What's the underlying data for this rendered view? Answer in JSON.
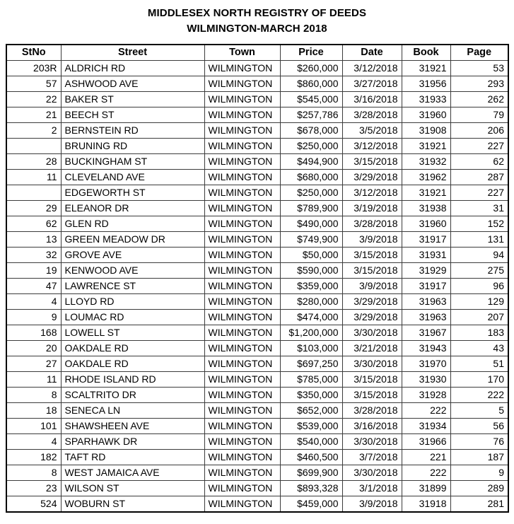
{
  "title": {
    "line1": "MIDDLESEX NORTH REGISTRY OF DEEDS",
    "line2": "WILMINGTON-MARCH 2018"
  },
  "colors": {
    "background": "#ffffff",
    "text": "#000000",
    "outer_border": "#000000",
    "grid_line": "#3c3c3c"
  },
  "table": {
    "columns": [
      {
        "key": "stno",
        "label": "StNo"
      },
      {
        "key": "street",
        "label": "Street"
      },
      {
        "key": "town",
        "label": "Town"
      },
      {
        "key": "price",
        "label": "Price"
      },
      {
        "key": "date",
        "label": "Date"
      },
      {
        "key": "book",
        "label": "Book"
      },
      {
        "key": "page",
        "label": "Page"
      }
    ],
    "rows": [
      {
        "stno": "203R",
        "street": "ALDRICH RD",
        "town": "WILMINGTON",
        "price": "$260,000",
        "date": "3/12/2018",
        "book": "31921",
        "page": "53"
      },
      {
        "stno": "57",
        "street": "ASHWOOD AVE",
        "town": "WILMINGTON",
        "price": "$860,000",
        "date": "3/27/2018",
        "book": "31956",
        "page": "293"
      },
      {
        "stno": "22",
        "street": "BAKER ST",
        "town": "WILMINGTON",
        "price": "$545,000",
        "date": "3/16/2018",
        "book": "31933",
        "page": "262"
      },
      {
        "stno": "21",
        "street": "BEECH ST",
        "town": "WILMINGTON",
        "price": "$257,786",
        "date": "3/28/2018",
        "book": "31960",
        "page": "79"
      },
      {
        "stno": "2",
        "street": "BERNSTEIN RD",
        "town": "WILMINGTON",
        "price": "$678,000",
        "date": "3/5/2018",
        "book": "31908",
        "page": "206"
      },
      {
        "stno": "",
        "street": "BRUNING RD",
        "town": "WILMINGTON",
        "price": "$250,000",
        "date": "3/12/2018",
        "book": "31921",
        "page": "227"
      },
      {
        "stno": "28",
        "street": "BUCKINGHAM ST",
        "town": "WILMINGTON",
        "price": "$494,900",
        "date": "3/15/2018",
        "book": "31932",
        "page": "62"
      },
      {
        "stno": "11",
        "street": "CLEVELAND AVE",
        "town": "WILMINGTON",
        "price": "$680,000",
        "date": "3/29/2018",
        "book": "31962",
        "page": "287"
      },
      {
        "stno": "",
        "street": "EDGEWORTH ST",
        "town": "WILMINGTON",
        "price": "$250,000",
        "date": "3/12/2018",
        "book": "31921",
        "page": "227"
      },
      {
        "stno": "29",
        "street": "ELEANOR DR",
        "town": "WILMINGTON",
        "price": "$789,900",
        "date": "3/19/2018",
        "book": "31938",
        "page": "31"
      },
      {
        "stno": "62",
        "street": "GLEN RD",
        "town": "WILMINGTON",
        "price": "$490,000",
        "date": "3/28/2018",
        "book": "31960",
        "page": "152"
      },
      {
        "stno": "13",
        "street": "GREEN MEADOW DR",
        "town": "WILMINGTON",
        "price": "$749,900",
        "date": "3/9/2018",
        "book": "31917",
        "page": "131"
      },
      {
        "stno": "32",
        "street": "GROVE AVE",
        "town": "WILMINGTON",
        "price": "$50,000",
        "date": "3/15/2018",
        "book": "31931",
        "page": "94"
      },
      {
        "stno": "19",
        "street": "KENWOOD AVE",
        "town": "WILMINGTON",
        "price": "$590,000",
        "date": "3/15/2018",
        "book": "31929",
        "page": "275"
      },
      {
        "stno": "47",
        "street": "LAWRENCE ST",
        "town": "WILMINGTON",
        "price": "$359,000",
        "date": "3/9/2018",
        "book": "31917",
        "page": "96"
      },
      {
        "stno": "4",
        "street": "LLOYD RD",
        "town": "WILMINGTON",
        "price": "$280,000",
        "date": "3/29/2018",
        "book": "31963",
        "page": "129"
      },
      {
        "stno": "9",
        "street": "LOUMAC RD",
        "town": "WILMINGTON",
        "price": "$474,000",
        "date": "3/29/2018",
        "book": "31963",
        "page": "207"
      },
      {
        "stno": "168",
        "street": "LOWELL ST",
        "town": "WILMINGTON",
        "price": "$1,200,000",
        "date": "3/30/2018",
        "book": "31967",
        "page": "183"
      },
      {
        "stno": "20",
        "street": "OAKDALE RD",
        "town": "WILMINGTON",
        "price": "$103,000",
        "date": "3/21/2018",
        "book": "31943",
        "page": "43"
      },
      {
        "stno": "27",
        "street": "OAKDALE RD",
        "town": "WILMINGTON",
        "price": "$697,250",
        "date": "3/30/2018",
        "book": "31970",
        "page": "51"
      },
      {
        "stno": "11",
        "street": "RHODE ISLAND RD",
        "town": "WILMINGTON",
        "price": "$785,000",
        "date": "3/15/2018",
        "book": "31930",
        "page": "170"
      },
      {
        "stno": "8",
        "street": "SCALTRITO DR",
        "town": "WILMINGTON",
        "price": "$350,000",
        "date": "3/15/2018",
        "book": "31928",
        "page": "222"
      },
      {
        "stno": "18",
        "street": "SENECA LN",
        "town": "WILMINGTON",
        "price": "$652,000",
        "date": "3/28/2018",
        "book": "222",
        "page": "5"
      },
      {
        "stno": "101",
        "street": "SHAWSHEEN AVE",
        "town": "WILMINGTON",
        "price": "$539,000",
        "date": "3/16/2018",
        "book": "31934",
        "page": "56"
      },
      {
        "stno": "4",
        "street": "SPARHAWK DR",
        "town": "WILMINGTON",
        "price": "$540,000",
        "date": "3/30/2018",
        "book": "31966",
        "page": "76"
      },
      {
        "stno": "182",
        "street": "TAFT RD",
        "town": "WILMINGTON",
        "price": "$460,500",
        "date": "3/7/2018",
        "book": "221",
        "page": "187"
      },
      {
        "stno": "8",
        "street": "WEST JAMAICA AVE",
        "town": "WILMINGTON",
        "price": "$699,900",
        "date": "3/30/2018",
        "book": "222",
        "page": "9"
      },
      {
        "stno": "23",
        "street": "WILSON ST",
        "town": "WILMINGTON",
        "price": "$893,328",
        "date": "3/1/2018",
        "book": "31899",
        "page": "289"
      },
      {
        "stno": "524",
        "street": "WOBURN ST",
        "town": "WILMINGTON",
        "price": "$459,000",
        "date": "3/9/2018",
        "book": "31918",
        "page": "281"
      }
    ]
  }
}
